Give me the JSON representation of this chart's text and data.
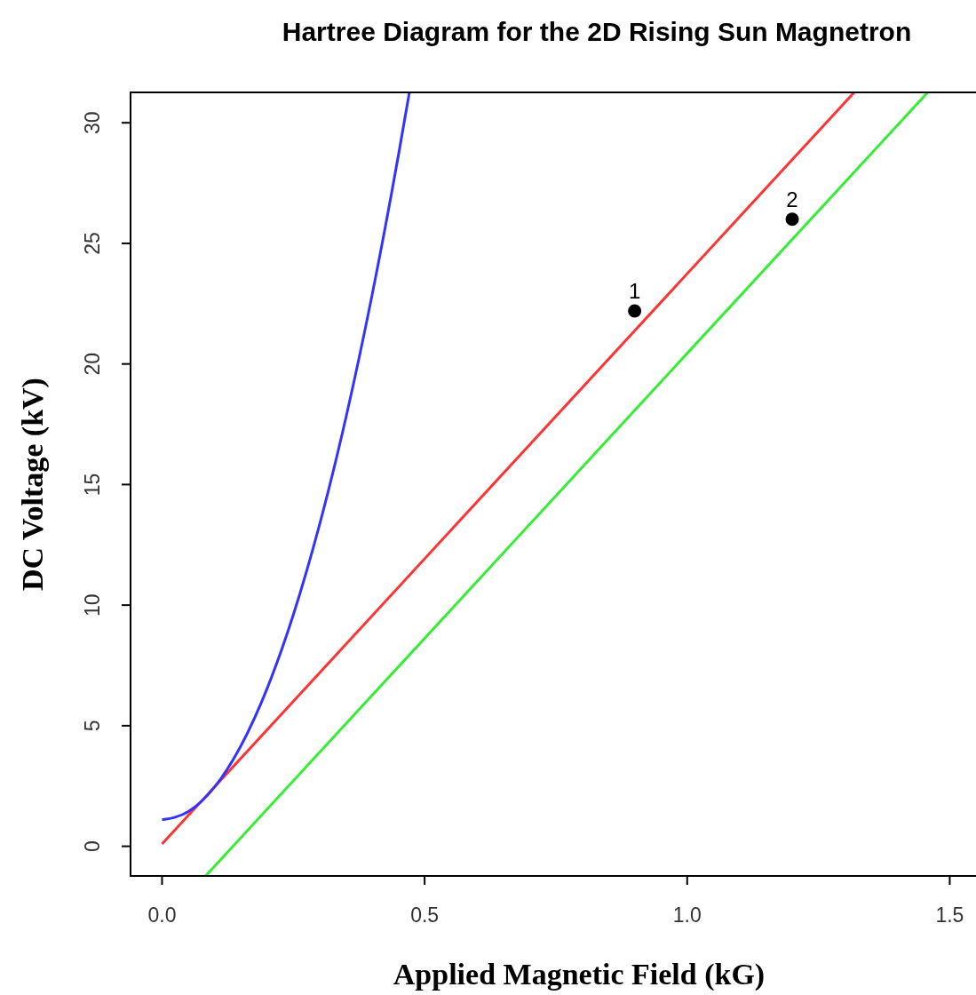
{
  "chart_data": {
    "type": "line",
    "title": "Hartree Diagram for the 2D Rising Sun Magnetron",
    "xlabel": "Applied Magnetic Field (kG)",
    "ylabel": "DC Voltage (kV)",
    "xlim": [
      -0.06,
      1.55
    ],
    "ylim": [
      -1.23,
      31.26
    ],
    "xticks": [
      {
        "value": 0,
        "label": "0.0"
      },
      0.5,
      {
        "value": 1,
        "label": "1.0"
      },
      1.5
    ],
    "yticks": [
      0,
      5,
      10,
      15,
      20,
      25,
      30
    ],
    "grid": false,
    "series": [
      {
        "color": "#ff3333",
        "x": [
          0,
          1.318
        ],
        "values": [
          0.1,
          31.26
        ]
      },
      {
        "color": "#33ee33",
        "x": [
          0.083,
          1.458
        ],
        "values": [
          -1.23,
          31.26
        ]
      },
      {
        "color": "#3333ff",
        "x": [
          0,
          0.05,
          0.1,
          0.15,
          0.2,
          0.25,
          0.3,
          0.35,
          0.4,
          0.45,
          0.471
        ],
        "values": [
          1.1,
          1.44,
          2.46,
          4.16,
          6.54,
          9.6,
          13.34,
          17.76,
          22.86,
          28.64,
          31.26
        ]
      },
      {
        "type": "scatter",
        "color": "#000000",
        "marker": "circle",
        "x": [
          0.9,
          1.2
        ],
        "values": [
          22.2,
          26.0
        ]
      }
    ],
    "annotations": [
      {
        "text": "1",
        "x": 0.9,
        "y": 22.2
      },
      {
        "text": "2",
        "x": 1.2,
        "y": 26.0
      }
    ]
  }
}
